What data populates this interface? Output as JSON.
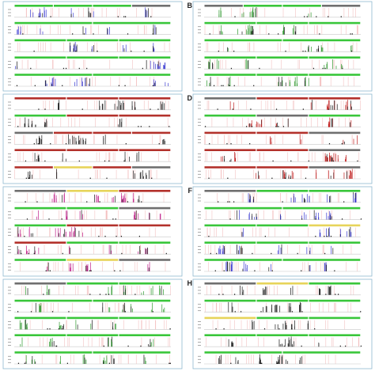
{
  "figure": {
    "panels": [
      {
        "label": "",
        "tracks": [
          [
            "green",
            "green",
            "green",
            "gray"
          ],
          [
            "green",
            "green"
          ],
          [
            "green",
            "green",
            "green"
          ],
          [
            "green",
            "green",
            "green"
          ],
          [
            "green",
            "green"
          ]
        ]
      },
      {
        "label": "B",
        "tracks": [
          [
            "gray",
            "green",
            "green",
            "gray"
          ],
          [
            "green",
            "green",
            "green"
          ],
          [
            "green",
            "green"
          ],
          [
            "green",
            "green",
            "green"
          ],
          [
            "green",
            "green",
            "green"
          ]
        ]
      },
      {
        "label": "",
        "tracks": [
          [
            "red",
            "red",
            "red"
          ],
          [
            "green",
            "red",
            "red"
          ],
          [
            "gray",
            "red",
            "red",
            "red"
          ],
          [
            "red",
            "red",
            "red"
          ],
          [
            "red",
            "yellow",
            "red",
            "gray"
          ]
        ]
      },
      {
        "label": "D",
        "tracks": [
          [
            "gray",
            "red",
            "red"
          ],
          [
            "green",
            "gray",
            "green"
          ],
          [
            "red",
            "red",
            "gray"
          ],
          [
            "red",
            "red",
            "gray"
          ],
          [
            "red",
            "red",
            "gray"
          ]
        ]
      },
      {
        "label": "",
        "tracks": [
          [
            "gray",
            "yellow",
            "red"
          ],
          [
            "green",
            "green",
            "gray"
          ],
          [
            "green",
            "red",
            "red"
          ],
          [
            "red",
            "green",
            "green"
          ],
          [
            "green",
            "yellow",
            "gray"
          ]
        ]
      },
      {
        "label": "F",
        "tracks": [
          [
            "gray",
            "green",
            "green"
          ],
          [
            "green",
            "green"
          ],
          [
            "green",
            "green",
            "yellow"
          ],
          [
            "green",
            "green",
            "green"
          ],
          [
            "green",
            "green"
          ]
        ]
      },
      {
        "label": "",
        "tracks": [
          [
            "gray",
            "green",
            "green"
          ],
          [
            "green",
            "green"
          ],
          [
            "green",
            "green",
            "green"
          ],
          [
            "green",
            "green",
            "green"
          ],
          [
            "green",
            "green"
          ]
        ]
      },
      {
        "label": "H",
        "tracks": [
          [
            "gray",
            "yellow",
            "green"
          ],
          [
            "green",
            "green",
            "green"
          ],
          [
            "yellow",
            "green",
            "green"
          ],
          [
            "green",
            "green",
            "green"
          ],
          [
            "green",
            "green"
          ]
        ]
      }
    ]
  },
  "colors": {
    "green": "#39c63a",
    "red": "#b3312b",
    "yellow": "#e7d45a",
    "gray": "#6f6f6f",
    "frame": "#8fb9cf",
    "spike_blue": "#3b3bd1",
    "spike_green": "#2f9a2f",
    "spike_dark": "#1a1a1a",
    "spike_red": "#c02020",
    "spike_magenta": "#c0208a",
    "pink_lines": "#f2b6b6"
  }
}
